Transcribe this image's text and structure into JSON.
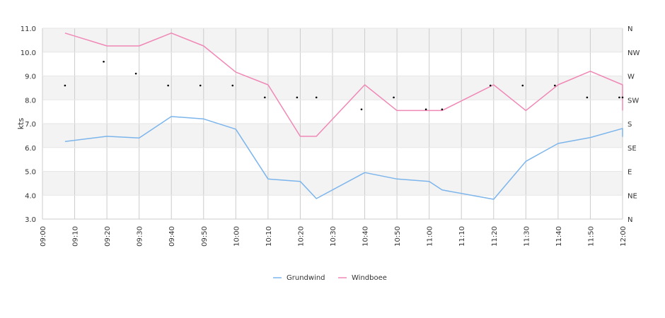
{
  "chart_data": {
    "type": "line",
    "ylabel": "kts",
    "ylim": [
      3.0,
      11.0
    ],
    "y_ticks": [
      "3.0",
      "4.0",
      "5.0",
      "6.0",
      "7.0",
      "8.0",
      "9.0",
      "10.0",
      "11.0"
    ],
    "x_range": [
      "09:00",
      "12:00"
    ],
    "x_ticks": [
      "09:00",
      "09:10",
      "09:20",
      "09:30",
      "09:40",
      "09:50",
      "10:00",
      "10:10",
      "10:20",
      "10:30",
      "10:40",
      "10:50",
      "11:00",
      "11:10",
      "11:20",
      "11:30",
      "11:40",
      "11:50",
      "12:00"
    ],
    "y2_ticks": [
      "N",
      "NE",
      "E",
      "SE",
      "S",
      "SW",
      "W",
      "NW",
      "N"
    ],
    "grid": true,
    "legend_position": "bottom",
    "colors": {
      "Grundwind": "#7cb5ec",
      "Windboee": "#f088b6"
    },
    "series": [
      {
        "name": "Grundwind",
        "points": [
          [
            "09:07",
            6.25
          ],
          [
            "09:20",
            6.47
          ],
          [
            "09:30",
            6.4
          ],
          [
            "09:40",
            7.3
          ],
          [
            "09:50",
            7.2
          ],
          [
            "10:00",
            6.77
          ],
          [
            "10:10",
            4.68
          ],
          [
            "10:20",
            4.58
          ],
          [
            "10:25",
            3.86
          ],
          [
            "10:40",
            4.95
          ],
          [
            "10:50",
            4.68
          ],
          [
            "11:00",
            4.58
          ],
          [
            "11:04",
            4.22
          ],
          [
            "11:20",
            3.83
          ],
          [
            "11:30",
            5.42
          ],
          [
            "11:40",
            6.17
          ],
          [
            "11:50",
            6.42
          ],
          [
            "12:00",
            6.8
          ],
          [
            "12:00",
            6.45
          ]
        ]
      },
      {
        "name": "Windboee",
        "points": [
          [
            "09:07",
            10.8
          ],
          [
            "09:20",
            10.26
          ],
          [
            "09:30",
            10.26
          ],
          [
            "09:40",
            10.8
          ],
          [
            "09:50",
            10.26
          ],
          [
            "10:00",
            9.16
          ],
          [
            "10:10",
            8.63
          ],
          [
            "10:20",
            6.47
          ],
          [
            "10:25",
            6.47
          ],
          [
            "10:40",
            8.63
          ],
          [
            "10:50",
            7.55
          ],
          [
            "11:00",
            7.55
          ],
          [
            "11:04",
            7.55
          ],
          [
            "11:20",
            8.63
          ],
          [
            "11:30",
            7.55
          ],
          [
            "11:40",
            8.63
          ],
          [
            "11:50",
            9.2
          ],
          [
            "12:00",
            8.63
          ],
          [
            "12:00",
            7.55
          ]
        ]
      }
    ],
    "direction_points": [
      [
        "09:07",
        8.6
      ],
      [
        "09:19",
        9.6
      ],
      [
        "09:29",
        9.1
      ],
      [
        "09:39",
        8.6
      ],
      [
        "09:49",
        8.6
      ],
      [
        "09:59",
        8.6
      ],
      [
        "10:09",
        8.1
      ],
      [
        "10:19",
        8.1
      ],
      [
        "10:25",
        8.1
      ],
      [
        "10:39",
        7.6
      ],
      [
        "10:49",
        8.1
      ],
      [
        "10:59",
        7.6
      ],
      [
        "11:04",
        7.6
      ],
      [
        "11:19",
        8.6
      ],
      [
        "11:29",
        8.6
      ],
      [
        "11:39",
        8.6
      ],
      [
        "11:49",
        8.1
      ],
      [
        "11:59",
        8.1
      ],
      [
        "12:00",
        8.1
      ]
    ]
  }
}
